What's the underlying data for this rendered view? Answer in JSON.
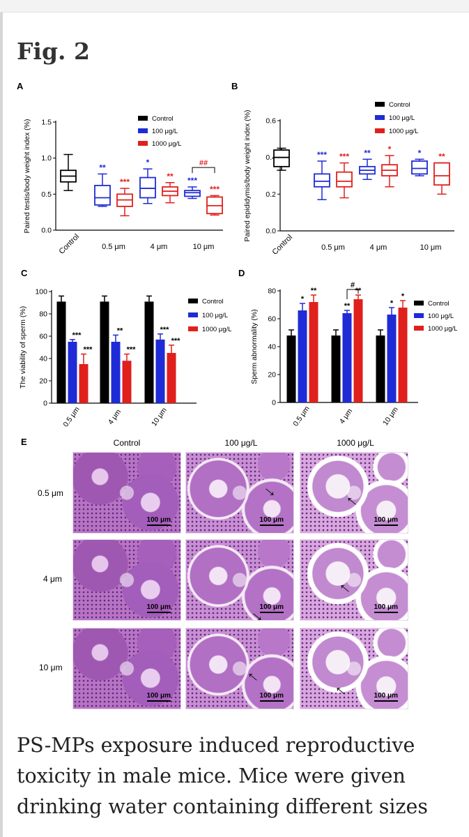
{
  "figure": {
    "title": "Fig. 2"
  },
  "panels": {
    "a": "A",
    "b": "B",
    "c": "C",
    "d": "D",
    "e": "E"
  },
  "legend": {
    "control": "Control",
    "low": "100 μg/L",
    "high": "1000 μg/L"
  },
  "colors": {
    "control": "#000000",
    "low": "#1f2bd6",
    "high": "#e0201c"
  },
  "chart_data": [
    {
      "panel": "A",
      "type": "boxplot",
      "ylabel": "Paired testis/body weight index (%)",
      "ylim": [
        0,
        1.5
      ],
      "yticks": [
        "0.0",
        "0.5",
        "1.0",
        "1.5"
      ],
      "categories": [
        "Control",
        "0.5 μm",
        "4 μm",
        "10 μm"
      ],
      "series": [
        {
          "name": "Control",
          "boxes": [
            {
              "category": "Control",
              "min": 0.55,
              "q1": 0.67,
              "median": 0.75,
              "q3": 0.83,
              "max": 1.05
            }
          ]
        },
        {
          "name": "100 μg/L",
          "boxes": [
            {
              "category": "0.5 μm",
              "min": 0.33,
              "q1": 0.35,
              "median": 0.45,
              "q3": 0.62,
              "max": 0.78,
              "sig": "**"
            },
            {
              "category": "4 μm",
              "min": 0.37,
              "q1": 0.45,
              "median": 0.58,
              "q3": 0.73,
              "max": 0.85,
              "sig": "*"
            },
            {
              "category": "10 μm",
              "min": 0.44,
              "q1": 0.47,
              "median": 0.52,
              "q3": 0.55,
              "max": 0.6,
              "sig": "***"
            }
          ]
        },
        {
          "name": "1000 μg/L",
          "boxes": [
            {
              "category": "0.5 μm",
              "min": 0.2,
              "q1": 0.33,
              "median": 0.42,
              "q3": 0.5,
              "max": 0.58,
              "sig": "***"
            },
            {
              "category": "4 μm",
              "min": 0.38,
              "q1": 0.48,
              "median": 0.54,
              "q3": 0.6,
              "max": 0.66,
              "sig": "**"
            },
            {
              "category": "10 μm",
              "min": 0.21,
              "q1": 0.23,
              "median": 0.34,
              "q3": 0.46,
              "max": 0.48,
              "sig": "***"
            }
          ]
        }
      ],
      "annotations": [
        {
          "text": "##"
        }
      ]
    },
    {
      "panel": "B",
      "type": "boxplot",
      "ylabel": "Paired epididymis/body weight index (%)",
      "ylim": [
        0,
        0.6
      ],
      "yticks": [
        "0.0",
        "0.2",
        "0.4",
        "0.6"
      ],
      "categories": [
        "Control",
        "0.5 μm",
        "4 μm",
        "10 μm"
      ],
      "series": [
        {
          "name": "Control",
          "boxes": [
            {
              "category": "Control",
              "min": 0.33,
              "q1": 0.35,
              "median": 0.4,
              "q3": 0.44,
              "max": 0.45
            }
          ]
        },
        {
          "name": "100 μg/L",
          "boxes": [
            {
              "category": "0.5 μm",
              "min": 0.17,
              "q1": 0.24,
              "median": 0.27,
              "q3": 0.31,
              "max": 0.38,
              "sig": "***"
            },
            {
              "category": "4 μm",
              "min": 0.28,
              "q1": 0.31,
              "median": 0.33,
              "q3": 0.35,
              "max": 0.39,
              "sig": "**"
            },
            {
              "category": "10 μm",
              "min": 0.3,
              "q1": 0.31,
              "median": 0.34,
              "q3": 0.38,
              "max": 0.39,
              "sig": "*"
            }
          ]
        },
        {
          "name": "1000 μg/L",
          "boxes": [
            {
              "category": "0.5 μm",
              "min": 0.18,
              "q1": 0.24,
              "median": 0.27,
              "q3": 0.32,
              "max": 0.37,
              "sig": "***"
            },
            {
              "category": "4 μm",
              "min": 0.24,
              "q1": 0.3,
              "median": 0.33,
              "q3": 0.36,
              "max": 0.41,
              "sig": "*"
            },
            {
              "category": "10 μm",
              "min": 0.2,
              "q1": 0.25,
              "median": 0.3,
              "q3": 0.37,
              "max": 0.37,
              "sig": "**"
            }
          ]
        }
      ]
    },
    {
      "panel": "C",
      "type": "bar",
      "ylabel": "The viability of sperm (%)",
      "ylim": [
        0,
        100
      ],
      "yticks": [
        "0",
        "20",
        "40",
        "60",
        "80",
        "100"
      ],
      "categories": [
        "0.5 μm",
        "4 μm",
        "10 μm"
      ],
      "series": [
        {
          "name": "Control",
          "values": [
            91,
            91,
            91
          ],
          "errors": [
            5,
            5,
            5
          ],
          "sig": [
            "",
            "",
            ""
          ]
        },
        {
          "name": "100 μg/L",
          "values": [
            55,
            55,
            57
          ],
          "errors": [
            2,
            6,
            5
          ],
          "sig": [
            "***",
            "**",
            "***"
          ]
        },
        {
          "name": "1000 μg/L",
          "values": [
            35,
            38,
            45
          ],
          "errors": [
            9,
            6,
            7
          ],
          "sig": [
            "***",
            "***",
            "***"
          ]
        }
      ]
    },
    {
      "panel": "D",
      "type": "bar",
      "ylabel": "Sperm abnormality (%)",
      "ylim": [
        0,
        80
      ],
      "yticks": [
        "0",
        "20",
        "40",
        "60",
        "80"
      ],
      "categories": [
        "0.5 μm",
        "4 μm",
        "10 μm"
      ],
      "series": [
        {
          "name": "Control",
          "values": [
            48,
            48,
            48
          ],
          "errors": [
            4,
            4,
            4
          ],
          "sig": [
            "",
            "",
            ""
          ]
        },
        {
          "name": "100 μg/L",
          "values": [
            66,
            64,
            63
          ],
          "errors": [
            5,
            2,
            5
          ],
          "sig": [
            "*",
            "**",
            "*"
          ]
        },
        {
          "name": "1000 μg/L",
          "values": [
            72,
            74,
            68
          ],
          "errors": [
            5,
            3,
            5
          ],
          "sig": [
            "**",
            "**",
            "*"
          ]
        }
      ],
      "annotations": [
        {
          "text": "#"
        }
      ]
    }
  ],
  "histology": {
    "columns": [
      "Control",
      "100 μg/L",
      "1000 μg/L"
    ],
    "rows": [
      "0.5 μm",
      "4 μm",
      "10 μm"
    ],
    "scalebar": "100 μm"
  },
  "caption": "PS-MPs exposure induced reproductive toxicity in male mice. Mice were given drinking water containing different sizes"
}
